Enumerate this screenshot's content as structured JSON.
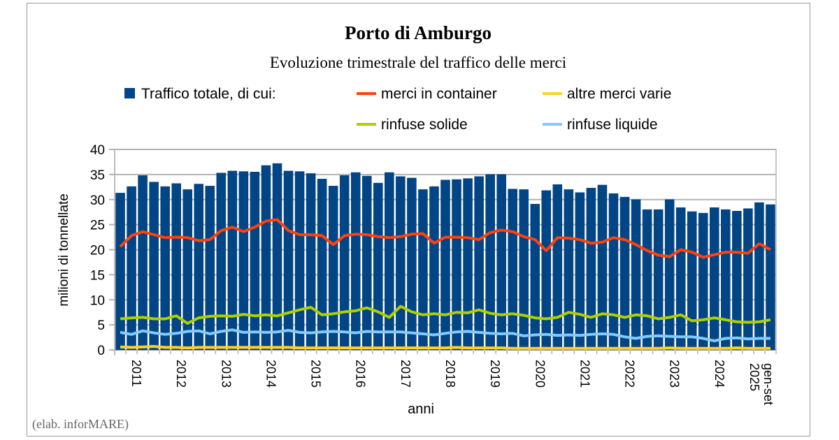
{
  "chart_data": {
    "type": "bar",
    "title": "Porto di Amburgo",
    "subtitle": "Evoluzione trimestrale del traffico delle merci",
    "xlabel": "anni",
    "ylabel": "milioni di tonnellate",
    "ylim": [
      0,
      40
    ],
    "yticks": [
      0,
      5,
      10,
      15,
      20,
      25,
      30,
      35,
      40
    ],
    "grid": true,
    "legend_placement": "top",
    "source_note": "(elab. inforMARE)",
    "year_labels": [
      "2011",
      "2012",
      "2013",
      "2014",
      "2015",
      "2016",
      "2017",
      "2018",
      "2019",
      "2020",
      "2021",
      "2022",
      "2023",
      "2024"
    ],
    "last_label": [
      "gen-set",
      "2025"
    ],
    "quarters_per_year": [
      4,
      4,
      4,
      4,
      4,
      4,
      4,
      4,
      4,
      4,
      4,
      4,
      4,
      4,
      3
    ],
    "series": [
      {
        "name": "Traffico totale, di cui:",
        "kind": "bar",
        "color": "#004586",
        "values": [
          31.3,
          32.6,
          34.8,
          33.5,
          32.6,
          33.2,
          32.0,
          33.1,
          32.7,
          35.3,
          35.7,
          35.6,
          35.5,
          36.8,
          37.2,
          35.7,
          35.6,
          35.2,
          34.1,
          32.7,
          34.8,
          35.4,
          34.7,
          33.3,
          35.4,
          34.6,
          34.3,
          32.0,
          32.6,
          33.9,
          34.0,
          34.2,
          34.6,
          35.0,
          35.0,
          32.1,
          32.0,
          29.1,
          31.8,
          33.0,
          32.0,
          31.4,
          32.3,
          32.9,
          31.2,
          30.5,
          30.0,
          28.0,
          28.0,
          30.0,
          28.4,
          27.6,
          27.3,
          28.4,
          28.0,
          27.7,
          28.2,
          29.4,
          29.0
        ]
      },
      {
        "name": "merci in container",
        "kind": "line",
        "color": "#ff420e",
        "values": [
          20.6,
          22.8,
          23.6,
          23.0,
          22.4,
          22.5,
          22.4,
          21.8,
          22.0,
          23.8,
          24.5,
          23.6,
          24.5,
          25.7,
          26.0,
          23.8,
          23.0,
          23.0,
          22.8,
          21.0,
          22.8,
          23.1,
          23.0,
          22.6,
          22.4,
          22.6,
          23.1,
          23.2,
          21.3,
          22.5,
          22.5,
          22.4,
          22.0,
          23.4,
          23.9,
          23.6,
          22.6,
          22.0,
          19.8,
          22.4,
          22.3,
          22.0,
          21.3,
          21.5,
          22.4,
          22.0,
          21.0,
          19.8,
          18.9,
          18.6,
          20.0,
          19.5,
          18.5,
          19.0,
          19.5,
          19.5,
          19.3,
          21.2,
          20.0
        ]
      },
      {
        "name": "altre merci varie",
        "kind": "line",
        "color": "#ffd320",
        "values": [
          0.6,
          0.5,
          0.6,
          0.7,
          0.5,
          0.5,
          0.4,
          0.5,
          0.5,
          0.5,
          0.5,
          0.5,
          0.5,
          0.5,
          0.5,
          0.5,
          0.4,
          0.4,
          0.4,
          0.4,
          0.4,
          0.4,
          0.4,
          0.4,
          0.4,
          0.4,
          0.4,
          0.4,
          0.4,
          0.4,
          0.5,
          0.4,
          0.4,
          0.4,
          0.4,
          0.3,
          0.3,
          0.3,
          0.3,
          0.3,
          0.3,
          0.3,
          0.3,
          0.3,
          0.3,
          0.3,
          0.3,
          0.3,
          0.3,
          0.4,
          0.3,
          0.3,
          0.3,
          0.3,
          0.3,
          0.4,
          0.3,
          0.3,
          0.3
        ]
      },
      {
        "name": "rinfuse solide",
        "kind": "line",
        "color": "#aecf00",
        "values": [
          6.2,
          6.4,
          6.5,
          6.2,
          6.2,
          6.8,
          5.3,
          6.4,
          6.7,
          6.8,
          6.7,
          7.1,
          6.8,
          7.0,
          6.8,
          7.4,
          8.0,
          8.5,
          7.0,
          7.2,
          7.6,
          7.8,
          8.4,
          7.6,
          6.5,
          8.7,
          7.6,
          7.0,
          7.2,
          7.0,
          7.5,
          7.4,
          8.0,
          7.3,
          7.0,
          7.2,
          6.9,
          6.4,
          6.2,
          6.5,
          7.5,
          7.1,
          6.5,
          7.2,
          7.0,
          6.5,
          7.0,
          6.8,
          6.2,
          6.5,
          7.0,
          5.8,
          6.0,
          6.4,
          6.0,
          5.6,
          5.5,
          5.6,
          6.0
        ]
      },
      {
        "name": "rinfuse liquide",
        "kind": "line",
        "color": "#83caff",
        "values": [
          3.5,
          3.1,
          3.8,
          3.4,
          3.1,
          3.3,
          3.7,
          3.8,
          3.2,
          3.7,
          4.0,
          3.5,
          3.6,
          3.5,
          3.6,
          3.9,
          3.5,
          3.4,
          3.6,
          3.7,
          3.6,
          3.4,
          3.7,
          3.6,
          3.6,
          3.6,
          3.4,
          3.2,
          3.0,
          3.3,
          3.6,
          3.7,
          3.5,
          3.3,
          3.2,
          3.3,
          2.8,
          3.0,
          3.1,
          2.9,
          3.0,
          2.9,
          3.1,
          3.2,
          3.1,
          2.6,
          2.3,
          2.7,
          2.8,
          2.7,
          2.6,
          2.6,
          2.3,
          1.8,
          2.3,
          2.4,
          2.2,
          2.3,
          2.3
        ]
      }
    ]
  }
}
